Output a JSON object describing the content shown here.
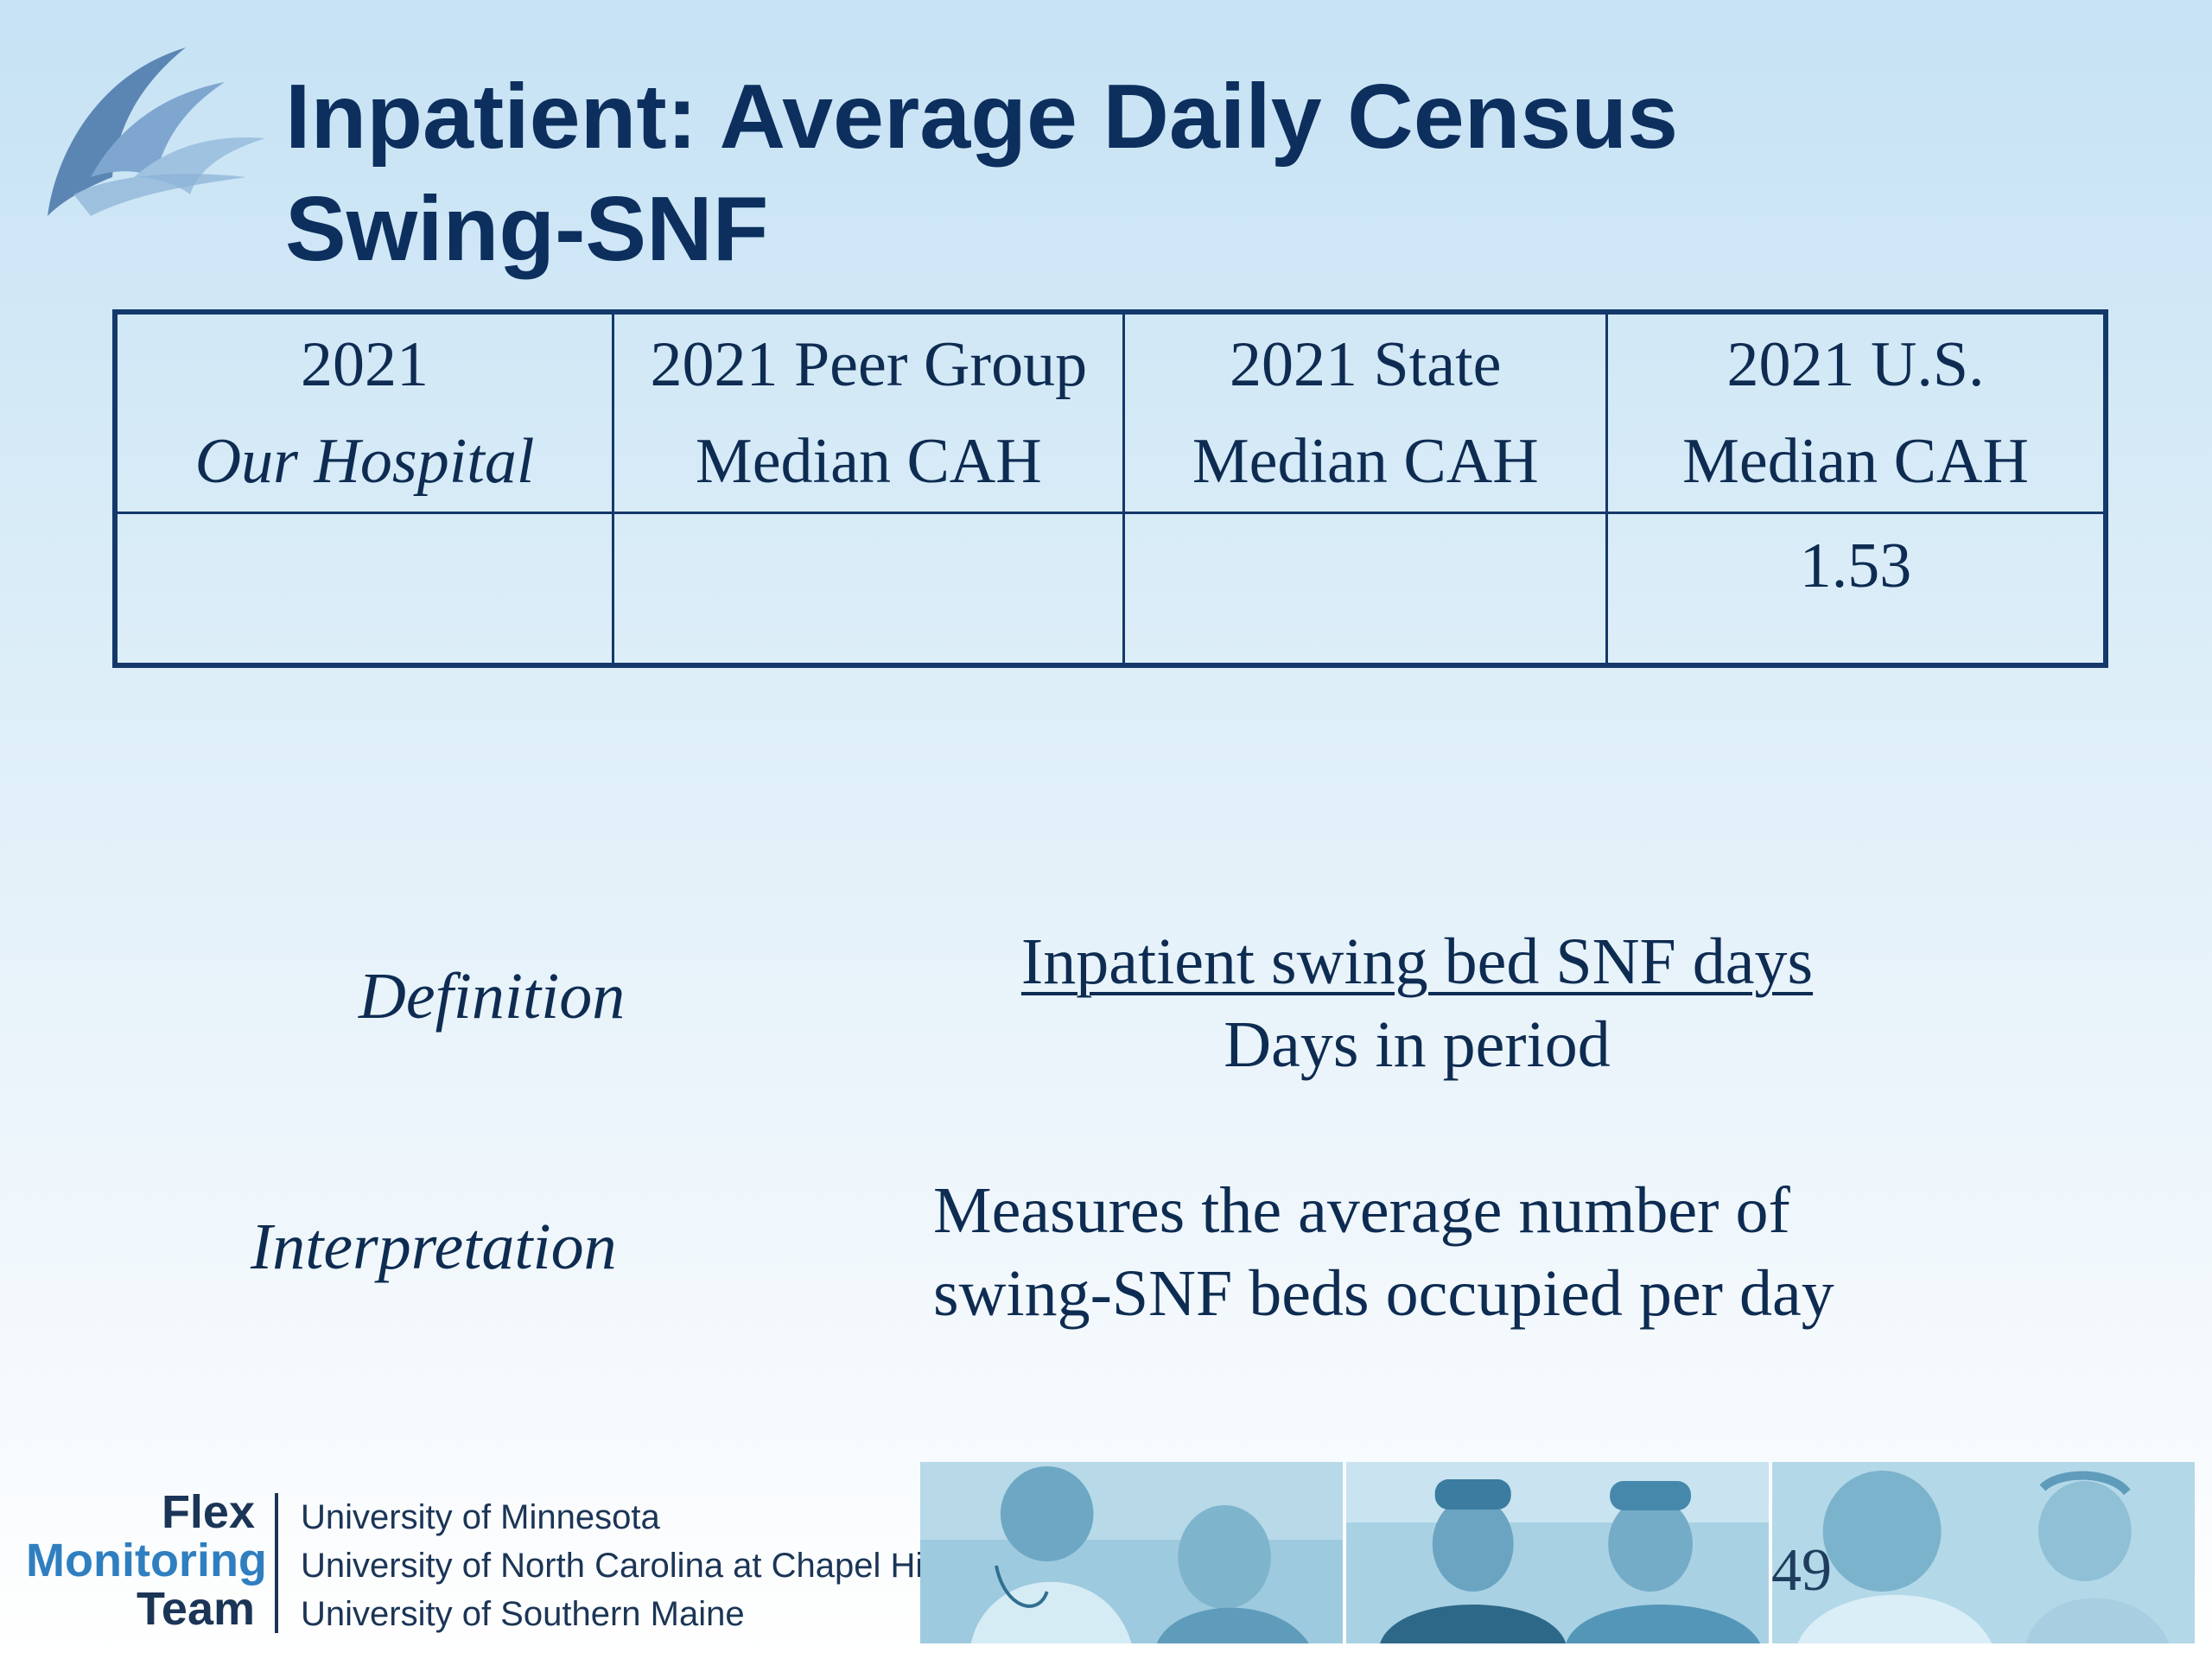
{
  "title": {
    "line1": "Inpatient:  Average Daily Census",
    "line2": "Swing-SNF"
  },
  "table": {
    "headers": [
      {
        "line1": "2021",
        "line2": "Our Hospital"
      },
      {
        "line1": "2021 Peer Group",
        "line2": "Median CAH"
      },
      {
        "line1": "2021 State",
        "line2": "Median CAH"
      },
      {
        "line1": "2021 U.S.",
        "line2": "Median CAH"
      }
    ],
    "values": [
      "",
      "",
      "",
      "1.53"
    ]
  },
  "definition": {
    "label": "Definition",
    "numerator": "Inpatient swing bed SNF days",
    "denominator": "Days in period"
  },
  "interpretation": {
    "label": "Interpretation",
    "line1": "Measures the average number of",
    "line2": "swing-SNF beds occupied per day"
  },
  "footer": {
    "logo": {
      "line1": "Flex",
      "line2": "Monitoring",
      "line3": "Team"
    },
    "universities": [
      "University of Minnesota",
      "University of North Carolina at Chapel Hill",
      "University of Southern Maine"
    ],
    "page_number": "49"
  },
  "icons": {
    "logo": "sail-logo-icon"
  },
  "colors": {
    "title": "#0c2f5e",
    "table_border": "#14386a",
    "accent_blue": "#2f7fc0"
  }
}
